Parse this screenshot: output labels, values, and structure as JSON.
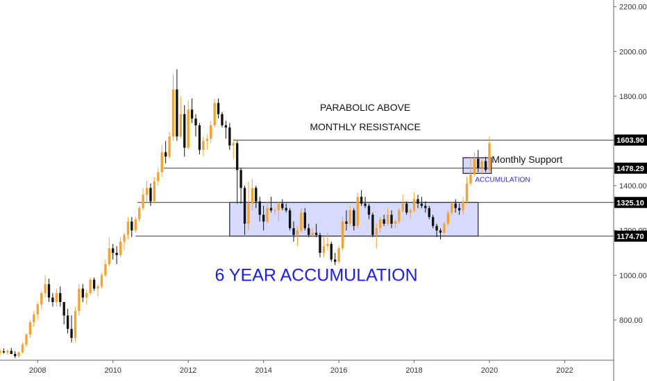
{
  "chart_data": {
    "type": "candlestick",
    "title": "",
    "xlabel": "",
    "ylabel": "",
    "x_range": [
      2007.0,
      2023.3
    ],
    "y_range": [
      620,
      2230
    ],
    "y_tick_labels": [
      "800.00",
      "1000.00",
      "1200.00",
      "1400.00",
      "1600.00",
      "1800.00",
      "2000.00",
      "2200.00"
    ],
    "y_tick_values": [
      800,
      1000,
      1200,
      1400,
      1600,
      1800,
      2000,
      2200
    ],
    "x_tick_labels": [
      "2008",
      "2010",
      "2012",
      "2014",
      "2016",
      "2018",
      "2020",
      "2022"
    ],
    "x_tick_values": [
      2008,
      2010,
      2012,
      2014,
      2016,
      2018,
      2020,
      2022
    ],
    "grid": false,
    "colors": {
      "up": "#f7a32b",
      "down": "#111111",
      "level_line": "#333333",
      "level_tag": "#000000",
      "zone_fill": "#cfd3ff",
      "zone_border": "#1b1b3a",
      "accent_text": "#1a1aff"
    },
    "levels": [
      {
        "value": 1603.9,
        "label": "1603.90",
        "from_x": 2013.2
      },
      {
        "value": 1478.29,
        "label": "1478.29",
        "from_x": 2011.35
      },
      {
        "value": 1325.1,
        "label": "1325.10",
        "from_x": 2010.65
      },
      {
        "value": 1174.7,
        "label": "1174.70",
        "from_x": 2010.6
      }
    ],
    "zones": [
      {
        "name": "6 year accumulation",
        "x0": 2013.1,
        "x1": 2019.7,
        "y0": 1174.7,
        "y1": 1325.1
      },
      {
        "name": "accumulation",
        "x0": 2019.3,
        "x1": 2020.05,
        "y0": 1455,
        "y1": 1525
      }
    ],
    "annotations": [
      {
        "text": "PARABOLIC ABOVE",
        "x": 2016.7,
        "y": 1735,
        "style": "note"
      },
      {
        "text": "MONTHLY RESISTANCE",
        "x": 2016.7,
        "y": 1648,
        "style": "note"
      },
      {
        "text": "Monthly Support",
        "x": 2021.0,
        "y": 1503,
        "style": "note"
      },
      {
        "text": "ACCUMULATION",
        "x": 2020.35,
        "y": 1418,
        "style": "small"
      },
      {
        "text": "6 YEAR ACCUMULATION",
        "x": 2015.4,
        "y": 975,
        "style": "big"
      }
    ],
    "candles": [
      [
        2007.0,
        653,
        670,
        640,
        660
      ],
      [
        2007.1,
        660,
        672,
        650,
        655
      ],
      [
        2007.2,
        655,
        668,
        645,
        662
      ],
      [
        2007.3,
        662,
        675,
        650,
        648
      ],
      [
        2007.4,
        648,
        660,
        630,
        638
      ],
      [
        2007.5,
        638,
        660,
        630,
        655
      ],
      [
        2007.6,
        655,
        700,
        650,
        690
      ],
      [
        2007.7,
        690,
        740,
        680,
        735
      ],
      [
        2007.8,
        735,
        800,
        720,
        790
      ],
      [
        2007.9,
        790,
        840,
        770,
        825
      ],
      [
        2008.0,
        825,
        880,
        800,
        870
      ],
      [
        2008.1,
        870,
        930,
        850,
        920
      ],
      [
        2008.2,
        920,
        1000,
        900,
        960
      ],
      [
        2008.3,
        960,
        985,
        880,
        900
      ],
      [
        2008.4,
        900,
        920,
        860,
        880
      ],
      [
        2008.5,
        880,
        940,
        860,
        920
      ],
      [
        2008.6,
        920,
        950,
        860,
        880
      ],
      [
        2008.7,
        880,
        880,
        780,
        820
      ],
      [
        2008.8,
        820,
        850,
        740,
        760
      ],
      [
        2008.9,
        760,
        820,
        700,
        720
      ],
      [
        2009.0,
        720,
        860,
        700,
        840
      ],
      [
        2009.1,
        840,
        960,
        820,
        940
      ],
      [
        2009.2,
        940,
        960,
        880,
        900
      ],
      [
        2009.3,
        900,
        935,
        870,
        920
      ],
      [
        2009.4,
        920,
        990,
        910,
        980
      ],
      [
        2009.5,
        980,
        990,
        930,
        940
      ],
      [
        2009.6,
        940,
        960,
        905,
        950
      ],
      [
        2009.7,
        950,
        1010,
        940,
        1000
      ],
      [
        2009.8,
        1000,
        1070,
        990,
        1050
      ],
      [
        2009.9,
        1050,
        1170,
        1040,
        1120
      ],
      [
        2010.0,
        1120,
        1140,
        1070,
        1100
      ],
      [
        2010.1,
        1100,
        1130,
        1050,
        1090
      ],
      [
        2010.2,
        1090,
        1170,
        1080,
        1150
      ],
      [
        2010.3,
        1150,
        1190,
        1110,
        1180
      ],
      [
        2010.4,
        1180,
        1260,
        1160,
        1240
      ],
      [
        2010.5,
        1240,
        1260,
        1170,
        1200
      ],
      [
        2010.6,
        1200,
        1260,
        1190,
        1250
      ],
      [
        2010.7,
        1250,
        1310,
        1240,
        1300
      ],
      [
        2010.8,
        1300,
        1390,
        1290,
        1360
      ],
      [
        2010.9,
        1360,
        1420,
        1330,
        1390
      ],
      [
        2011.0,
        1390,
        1410,
        1310,
        1330
      ],
      [
        2011.1,
        1330,
        1440,
        1320,
        1420
      ],
      [
        2011.2,
        1420,
        1480,
        1400,
        1460
      ],
      [
        2011.3,
        1460,
        1580,
        1440,
        1550
      ],
      [
        2011.4,
        1550,
        1600,
        1500,
        1530
      ],
      [
        2011.5,
        1530,
        1640,
        1520,
        1620
      ],
      [
        2011.6,
        1620,
        1900,
        1600,
        1830
      ],
      [
        2011.7,
        1830,
        1920,
        1600,
        1620
      ],
      [
        2011.8,
        1620,
        1800,
        1610,
        1720
      ],
      [
        2011.9,
        1720,
        1760,
        1530,
        1570
      ],
      [
        2012.0,
        1570,
        1780,
        1560,
        1740
      ],
      [
        2012.1,
        1740,
        1790,
        1680,
        1700
      ],
      [
        2012.2,
        1700,
        1720,
        1620,
        1670
      ],
      [
        2012.3,
        1670,
        1680,
        1540,
        1560
      ],
      [
        2012.4,
        1560,
        1620,
        1530,
        1600
      ],
      [
        2012.5,
        1600,
        1630,
        1560,
        1610
      ],
      [
        2012.6,
        1610,
        1690,
        1590,
        1670
      ],
      [
        2012.7,
        1670,
        1790,
        1660,
        1770
      ],
      [
        2012.8,
        1770,
        1790,
        1700,
        1720
      ],
      [
        2012.9,
        1720,
        1730,
        1660,
        1670
      ],
      [
        2013.0,
        1670,
        1690,
        1610,
        1660
      ],
      [
        2013.1,
        1660,
        1680,
        1560,
        1580
      ],
      [
        2013.2,
        1580,
        1610,
        1520,
        1590
      ],
      [
        2013.3,
        1590,
        1600,
        1320,
        1470
      ],
      [
        2013.4,
        1470,
        1480,
        1320,
        1390
      ],
      [
        2013.5,
        1390,
        1400,
        1180,
        1230
      ],
      [
        2013.6,
        1230,
        1420,
        1200,
        1320
      ],
      [
        2013.7,
        1320,
        1430,
        1290,
        1390
      ],
      [
        2013.8,
        1390,
        1400,
        1300,
        1330
      ],
      [
        2013.9,
        1330,
        1350,
        1240,
        1270
      ],
      [
        2014.0,
        1270,
        1310,
        1200,
        1240
      ],
      [
        2014.1,
        1240,
        1330,
        1230,
        1300
      ],
      [
        2014.2,
        1300,
        1350,
        1280,
        1290
      ],
      [
        2014.3,
        1290,
        1300,
        1270,
        1290
      ],
      [
        2014.4,
        1290,
        1330,
        1240,
        1320
      ],
      [
        2014.5,
        1320,
        1340,
        1290,
        1300
      ],
      [
        2014.6,
        1300,
        1320,
        1280,
        1290
      ],
      [
        2014.7,
        1290,
        1300,
        1200,
        1210
      ],
      [
        2014.8,
        1210,
        1240,
        1150,
        1180
      ],
      [
        2014.9,
        1180,
        1220,
        1130,
        1200
      ],
      [
        2015.0,
        1200,
        1300,
        1190,
        1280
      ],
      [
        2015.1,
        1280,
        1300,
        1200,
        1210
      ],
      [
        2015.2,
        1210,
        1230,
        1170,
        1180
      ],
      [
        2015.3,
        1180,
        1210,
        1170,
        1190
      ],
      [
        2015.4,
        1190,
        1230,
        1170,
        1180
      ],
      [
        2015.5,
        1180,
        1190,
        1080,
        1100
      ],
      [
        2015.6,
        1100,
        1170,
        1080,
        1130
      ],
      [
        2015.7,
        1130,
        1190,
        1110,
        1140
      ],
      [
        2015.8,
        1140,
        1150,
        1060,
        1070
      ],
      [
        2015.9,
        1070,
        1100,
        1045,
        1060
      ],
      [
        2016.0,
        1060,
        1130,
        1050,
        1120
      ],
      [
        2016.1,
        1120,
        1260,
        1110,
        1240
      ],
      [
        2016.2,
        1240,
        1290,
        1200,
        1230
      ],
      [
        2016.3,
        1230,
        1310,
        1220,
        1290
      ],
      [
        2016.4,
        1290,
        1300,
        1200,
        1220
      ],
      [
        2016.5,
        1220,
        1370,
        1210,
        1350
      ],
      [
        2016.6,
        1350,
        1380,
        1310,
        1320
      ],
      [
        2016.7,
        1320,
        1350,
        1300,
        1310
      ],
      [
        2016.8,
        1310,
        1320,
        1250,
        1270
      ],
      [
        2016.9,
        1270,
        1280,
        1170,
        1180
      ],
      [
        2017.0,
        1180,
        1230,
        1120,
        1210
      ],
      [
        2017.1,
        1210,
        1260,
        1190,
        1250
      ],
      [
        2017.2,
        1250,
        1270,
        1220,
        1230
      ],
      [
        2017.3,
        1230,
        1300,
        1220,
        1270
      ],
      [
        2017.4,
        1270,
        1290,
        1210,
        1230
      ],
      [
        2017.5,
        1230,
        1250,
        1210,
        1240
      ],
      [
        2017.6,
        1240,
        1300,
        1230,
        1290
      ],
      [
        2017.7,
        1290,
        1360,
        1280,
        1320
      ],
      [
        2017.8,
        1320,
        1330,
        1270,
        1280
      ],
      [
        2017.9,
        1280,
        1300,
        1250,
        1290
      ],
      [
        2018.0,
        1290,
        1370,
        1280,
        1340
      ],
      [
        2018.1,
        1340,
        1360,
        1300,
        1320
      ],
      [
        2018.2,
        1320,
        1350,
        1300,
        1310
      ],
      [
        2018.3,
        1310,
        1330,
        1280,
        1300
      ],
      [
        2018.4,
        1300,
        1310,
        1250,
        1260
      ],
      [
        2018.5,
        1260,
        1270,
        1210,
        1220
      ],
      [
        2018.6,
        1220,
        1230,
        1170,
        1200
      ],
      [
        2018.7,
        1200,
        1210,
        1160,
        1190
      ],
      [
        2018.8,
        1190,
        1240,
        1180,
        1230
      ],
      [
        2018.9,
        1230,
        1290,
        1220,
        1280
      ],
      [
        2019.0,
        1280,
        1330,
        1270,
        1320
      ],
      [
        2019.1,
        1320,
        1340,
        1280,
        1300
      ],
      [
        2019.2,
        1300,
        1320,
        1270,
        1290
      ],
      [
        2019.3,
        1290,
        1350,
        1270,
        1330
      ],
      [
        2019.4,
        1330,
        1440,
        1320,
        1410
      ],
      [
        2019.5,
        1410,
        1530,
        1400,
        1450
      ],
      [
        2019.6,
        1450,
        1550,
        1440,
        1520
      ],
      [
        2019.7,
        1520,
        1560,
        1460,
        1480
      ],
      [
        2019.8,
        1480,
        1520,
        1450,
        1510
      ],
      [
        2019.9,
        1510,
        1530,
        1460,
        1470
      ],
      [
        2020.0,
        1470,
        1620,
        1460,
        1590
      ]
    ]
  }
}
